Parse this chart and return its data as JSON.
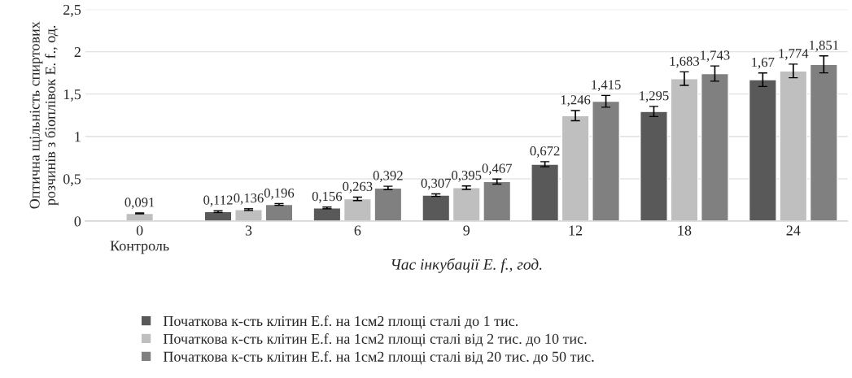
{
  "chart_data": {
    "type": "bar",
    "xlabel": "Час інкубації E. f., год.",
    "ylabel": "Оптична щільність спиртових\nрозчинів з біоплівок E. f., од.",
    "categories": [
      "0\nКонтроль",
      "3",
      "6",
      "9",
      "12",
      "18",
      "24"
    ],
    "ylim": [
      0,
      2.5
    ],
    "yticks": [
      0,
      {
        "value": 0.5,
        "label": "0,5"
      },
      1,
      {
        "value": 1.5,
        "label": "1,5"
      },
      2,
      {
        "value": 2.5,
        "label": "2,5"
      }
    ],
    "grid": "y",
    "legend": "bottom",
    "series": [
      {
        "name": "Початкова к-сть клітин E.f. на 1см2 площі сталі до 1 тис.",
        "color": "#595959",
        "values": [
          null,
          0.112,
          0.156,
          0.307,
          0.672,
          1.295,
          1.67
        ],
        "errors": [
          null,
          0.01,
          0.01,
          0.015,
          0.03,
          0.06,
          0.08
        ],
        "value_labels": [
          null,
          "0,112",
          "0,156",
          "0,307",
          "0,672",
          "1,295",
          "1,67"
        ]
      },
      {
        "name": "Початкова к-сть клітин E.f. на 1см2 площі сталі від 2 тис. до 10 тис.",
        "color": "#bfbfbf",
        "values": [
          0.091,
          0.136,
          0.263,
          0.395,
          1.246,
          1.683,
          1.774
        ],
        "errors": [
          0.005,
          0.01,
          0.02,
          0.02,
          0.06,
          0.08,
          0.08
        ],
        "value_labels": [
          "0,091",
          "0,136",
          "0,263",
          "0,395",
          "1,246",
          "1,683",
          "1,774"
        ]
      },
      {
        "name": "Початкова к-сть клітин E.f. на 1см2 площі сталі від 20 тис. до 50 тис.",
        "color": "#808080",
        "values": [
          null,
          0.196,
          0.392,
          0.467,
          1.415,
          1.743,
          1.851
        ],
        "errors": [
          null,
          0.01,
          0.02,
          0.03,
          0.07,
          0.09,
          0.1
        ],
        "value_labels": [
          null,
          "0,196",
          "0,392",
          "0,467",
          "1,415",
          "1,743",
          "1,851"
        ]
      }
    ]
  }
}
